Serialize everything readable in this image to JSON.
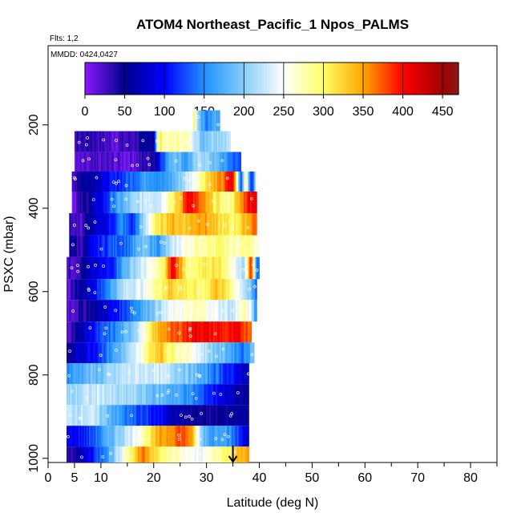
{
  "chart_data": {
    "type": "heatmap",
    "title": "ATOM4 Northeast_Pacific_1 Npos_PALMS",
    "annotations": [
      "Flts: 1,2",
      "MMDD: 0424,0427"
    ],
    "xlabel": "Latitude (deg N)",
    "ylabel": "PSXC (mbar)",
    "xlim": [
      0,
      85
    ],
    "ylim": [
      1010,
      10
    ],
    "x_ticks": [
      0,
      5,
      10,
      20,
      30,
      40,
      50,
      60,
      70,
      80
    ],
    "y_ticks": [
      200,
      400,
      600,
      800,
      1000
    ],
    "colorbar": {
      "range": [
        0,
        470
      ],
      "ticks": [
        0,
        50,
        100,
        150,
        200,
        250,
        300,
        350,
        400,
        450
      ],
      "stops": [
        {
          "v": 0,
          "c": "#8a1aff"
        },
        {
          "v": 50,
          "c": "#00008b"
        },
        {
          "v": 100,
          "c": "#0000ff"
        },
        {
          "v": 150,
          "c": "#1e90ff"
        },
        {
          "v": 200,
          "c": "#87cefa"
        },
        {
          "v": 250,
          "c": "#ffffff"
        },
        {
          "v": 300,
          "c": "#ffff66"
        },
        {
          "v": 350,
          "c": "#ffa500"
        },
        {
          "v": 400,
          "c": "#ff0000"
        },
        {
          "v": 450,
          "c": "#a00000"
        },
        {
          "v": 470,
          "c": "#8b1a1a"
        }
      ]
    },
    "bands": [
      {
        "p_top": 165,
        "p_bot": 215,
        "lat_min": 27.5,
        "lat_max": 32.5,
        "anchors": [
          [
            27.5,
            320
          ],
          [
            28.5,
            200
          ],
          [
            30,
            140
          ],
          [
            31.5,
            180
          ],
          [
            32.5,
            160
          ]
        ]
      },
      {
        "p_top": 215,
        "p_bot": 265,
        "lat_min": 5,
        "lat_max": 34.5,
        "anchors": [
          [
            5,
            30
          ],
          [
            8,
            40
          ],
          [
            12,
            20
          ],
          [
            16,
            30
          ],
          [
            20,
            60
          ],
          [
            21,
            310
          ],
          [
            22.5,
            270
          ],
          [
            25,
            280
          ],
          [
            27,
            260
          ],
          [
            29,
            190
          ],
          [
            31,
            210
          ],
          [
            34.5,
            220
          ]
        ]
      },
      {
        "p_top": 265,
        "p_bot": 312,
        "lat_min": 5,
        "lat_max": 36.5,
        "anchors": [
          [
            5,
            10
          ],
          [
            10,
            20
          ],
          [
            15,
            15
          ],
          [
            20,
            40
          ],
          [
            21.5,
            130
          ],
          [
            24,
            200
          ],
          [
            26,
            160
          ],
          [
            29,
            220
          ],
          [
            32,
            180
          ],
          [
            34,
            150
          ],
          [
            36.5,
            120
          ]
        ]
      },
      {
        "p_top": 312,
        "p_bot": 360,
        "lat_min": 4.5,
        "lat_max": 39.5,
        "anchors": [
          [
            4.5,
            30
          ],
          [
            7,
            60
          ],
          [
            10,
            80
          ],
          [
            13,
            110
          ],
          [
            16,
            140
          ],
          [
            19,
            170
          ],
          [
            22,
            150
          ],
          [
            25,
            200
          ],
          [
            28,
            260
          ],
          [
            30,
            320
          ],
          [
            33,
            360
          ],
          [
            35,
            420
          ],
          [
            36.5,
            120
          ],
          [
            37.5,
            300
          ],
          [
            38.5,
            90
          ],
          [
            39.5,
            250
          ]
        ]
      },
      {
        "p_top": 360,
        "p_bot": 412,
        "lat_min": 4.5,
        "lat_max": 39.5,
        "anchors": [
          [
            4.5,
            10
          ],
          [
            7,
            40
          ],
          [
            10,
            90
          ],
          [
            13,
            160
          ],
          [
            16,
            200
          ],
          [
            19,
            240
          ],
          [
            21,
            230
          ],
          [
            23,
            290
          ],
          [
            25,
            330
          ],
          [
            26.5,
            420
          ],
          [
            28,
            380
          ],
          [
            31,
            320
          ],
          [
            34,
            280
          ],
          [
            36,
            330
          ],
          [
            37.5,
            390
          ],
          [
            39,
            420
          ]
        ]
      },
      {
        "p_top": 412,
        "p_bot": 465,
        "lat_min": 4,
        "lat_max": 39.5,
        "anchors": [
          [
            4,
            40
          ],
          [
            6,
            20
          ],
          [
            8,
            60
          ],
          [
            11,
            90
          ],
          [
            14,
            150
          ],
          [
            16,
            110
          ],
          [
            18,
            200
          ],
          [
            20,
            290
          ],
          [
            23,
            340
          ],
          [
            26,
            330
          ],
          [
            29,
            360
          ],
          [
            32,
            320
          ],
          [
            35,
            300
          ],
          [
            37,
            330
          ],
          [
            39.5,
            380
          ]
        ]
      },
      {
        "p_top": 465,
        "p_bot": 517,
        "lat_min": 4,
        "lat_max": 40,
        "anchors": [
          [
            4,
            60
          ],
          [
            6,
            30
          ],
          [
            9,
            100
          ],
          [
            12,
            130
          ],
          [
            15,
            140
          ],
          [
            18,
            190
          ],
          [
            21,
            160
          ],
          [
            23,
            210
          ],
          [
            26,
            260
          ],
          [
            29,
            280
          ],
          [
            32,
            300
          ],
          [
            35,
            270
          ],
          [
            38,
            290
          ],
          [
            40,
            250
          ]
        ]
      },
      {
        "p_top": 517,
        "p_bot": 570,
        "lat_min": 3.5,
        "lat_max": 40,
        "anchors": [
          [
            3.5,
            20
          ],
          [
            6,
            40
          ],
          [
            9,
            80
          ],
          [
            12,
            110
          ],
          [
            14,
            170
          ],
          [
            17,
            220
          ],
          [
            20,
            260
          ],
          [
            22,
            300
          ],
          [
            23.5,
            410
          ],
          [
            25,
            350
          ],
          [
            27,
            280
          ],
          [
            29,
            300
          ],
          [
            32,
            320
          ],
          [
            35,
            260
          ],
          [
            37,
            210
          ],
          [
            38.5,
            400
          ],
          [
            39.5,
            140
          ]
        ]
      },
      {
        "p_top": 570,
        "p_bot": 620,
        "lat_min": 3.5,
        "lat_max": 39.5,
        "anchors": [
          [
            3.5,
            10
          ],
          [
            6,
            60
          ],
          [
            9,
            100
          ],
          [
            12,
            170
          ],
          [
            15,
            230
          ],
          [
            18,
            240
          ],
          [
            20,
            280
          ],
          [
            23,
            330
          ],
          [
            26,
            310
          ],
          [
            29,
            290
          ],
          [
            32,
            340
          ],
          [
            35,
            280
          ],
          [
            37,
            230
          ],
          [
            38.5,
            180
          ],
          [
            39.5,
            130
          ]
        ]
      },
      {
        "p_top": 620,
        "p_bot": 672,
        "lat_min": 3.5,
        "lat_max": 39.5,
        "anchors": [
          [
            3.5,
            20
          ],
          [
            7,
            40
          ],
          [
            11,
            80
          ],
          [
            14,
            120
          ],
          [
            17,
            160
          ],
          [
            20,
            200
          ],
          [
            23,
            240
          ],
          [
            26,
            260
          ],
          [
            29,
            270
          ],
          [
            32,
            240
          ],
          [
            35,
            220
          ],
          [
            37,
            280
          ],
          [
            38.5,
            230
          ],
          [
            39.5,
            140
          ]
        ]
      },
      {
        "p_top": 672,
        "p_bot": 722,
        "lat_min": 3.5,
        "lat_max": 38.5,
        "anchors": [
          [
            3.5,
            20
          ],
          [
            6,
            60
          ],
          [
            9,
            110
          ],
          [
            12,
            140
          ],
          [
            15,
            180
          ],
          [
            18,
            250
          ],
          [
            20,
            320
          ],
          [
            22,
            360
          ],
          [
            24,
            370
          ],
          [
            26,
            390
          ],
          [
            28,
            410
          ],
          [
            31,
            400
          ],
          [
            34,
            390
          ],
          [
            36,
            400
          ],
          [
            38.5,
            370
          ]
        ]
      },
      {
        "p_top": 722,
        "p_bot": 772,
        "lat_min": 3.5,
        "lat_max": 39,
        "anchors": [
          [
            3.5,
            40
          ],
          [
            6,
            80
          ],
          [
            9,
            110
          ],
          [
            12,
            160
          ],
          [
            15,
            200
          ],
          [
            17,
            240
          ],
          [
            19,
            300
          ],
          [
            21,
            340
          ],
          [
            23,
            300
          ],
          [
            25,
            280
          ],
          [
            28,
            250
          ],
          [
            31,
            200
          ],
          [
            34,
            180
          ],
          [
            37,
            140
          ],
          [
            39,
            200
          ]
        ]
      },
      {
        "p_top": 772,
        "p_bot": 822,
        "lat_min": 3.5,
        "lat_max": 38,
        "anchors": [
          [
            3.5,
            150
          ],
          [
            7,
            180
          ],
          [
            10,
            190
          ],
          [
            14,
            220
          ],
          [
            17,
            230
          ],
          [
            20,
            230
          ],
          [
            23,
            220
          ],
          [
            26,
            200
          ],
          [
            29,
            170
          ],
          [
            32,
            140
          ],
          [
            35,
            100
          ],
          [
            38,
            70
          ]
        ]
      },
      {
        "p_top": 822,
        "p_bot": 872,
        "lat_min": 3.5,
        "lat_max": 38,
        "anchors": [
          [
            3.5,
            200
          ],
          [
            7,
            220
          ],
          [
            10,
            230
          ],
          [
            13,
            210
          ],
          [
            16,
            210
          ],
          [
            19,
            190
          ],
          [
            22,
            180
          ],
          [
            26,
            160
          ],
          [
            29,
            130
          ],
          [
            32,
            100
          ],
          [
            35,
            70
          ],
          [
            38,
            40
          ]
        ]
      },
      {
        "p_top": 872,
        "p_bot": 922,
        "lat_min": 3.5,
        "lat_max": 38,
        "anchors": [
          [
            3.5,
            220
          ],
          [
            8,
            230
          ],
          [
            12,
            180
          ],
          [
            15,
            140
          ],
          [
            18,
            120
          ],
          [
            21,
            100
          ],
          [
            24,
            70
          ],
          [
            27,
            50
          ],
          [
            30,
            40
          ],
          [
            33,
            50
          ],
          [
            36,
            60
          ],
          [
            38,
            50
          ]
        ]
      },
      {
        "p_top": 922,
        "p_bot": 972,
        "lat_min": 3.5,
        "lat_max": 38,
        "anchors": [
          [
            3.5,
            90
          ],
          [
            7,
            110
          ],
          [
            10,
            150
          ],
          [
            13,
            200
          ],
          [
            16,
            240
          ],
          [
            19,
            300
          ],
          [
            21,
            340
          ],
          [
            23,
            360
          ],
          [
            25,
            380
          ],
          [
            27,
            360
          ],
          [
            29,
            200
          ],
          [
            31,
            160
          ],
          [
            33,
            180
          ],
          [
            35,
            140
          ],
          [
            37,
            100
          ],
          [
            38,
            70
          ]
        ]
      },
      {
        "p_top": 972,
        "p_bot": 1010,
        "lat_min": 3.5,
        "lat_max": 38,
        "anchors": [
          [
            3.5,
            30
          ],
          [
            6,
            60
          ],
          [
            9,
            120
          ],
          [
            12,
            180
          ],
          [
            14,
            250
          ],
          [
            16,
            310
          ],
          [
            18,
            370
          ],
          [
            19.5,
            340
          ],
          [
            21,
            300
          ],
          [
            23,
            280
          ],
          [
            26,
            260
          ],
          [
            29,
            240
          ],
          [
            32,
            280
          ],
          [
            34,
            300
          ],
          [
            36,
            330
          ],
          [
            38,
            360
          ]
        ]
      }
    ],
    "arrow": {
      "lat": 35,
      "p_from": 970,
      "p_to": 1010
    }
  }
}
